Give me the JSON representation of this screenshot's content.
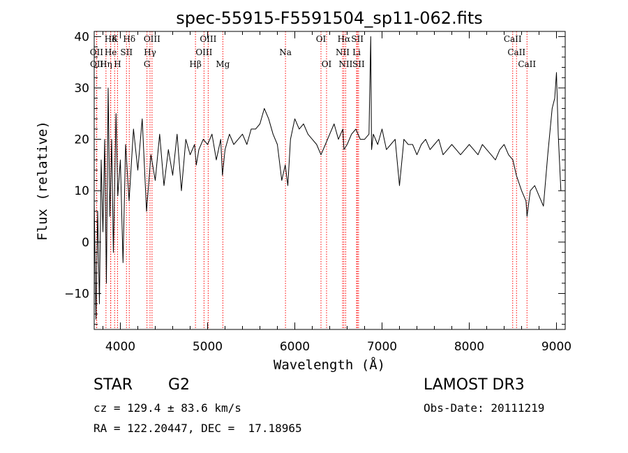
{
  "chart_data": {
    "type": "line",
    "title": "spec-55915-F5591504_sp11-062.fits",
    "xlabel": "Wavelength (Å)",
    "ylabel": "Flux (relative)",
    "xlim": [
      3700,
      9100
    ],
    "ylim": [
      -17,
      41
    ],
    "xticks": [
      4000,
      5000,
      6000,
      7000,
      8000,
      9000
    ],
    "yticks": [
      -10,
      0,
      10,
      20,
      30,
      40
    ],
    "grid": false,
    "line_color": "#ff0000",
    "spectrum": {
      "name": "flux",
      "x": [
        3700,
        3720,
        3740,
        3760,
        3780,
        3800,
        3820,
        3840,
        3860,
        3880,
        3900,
        3920,
        3950,
        3970,
        4000,
        4030,
        4060,
        4100,
        4150,
        4200,
        4250,
        4300,
        4350,
        4400,
        4450,
        4500,
        4550,
        4600,
        4650,
        4700,
        4750,
        4800,
        4850,
        4870,
        4900,
        4950,
        5000,
        5050,
        5100,
        5150,
        5170,
        5200,
        5250,
        5300,
        5350,
        5400,
        5450,
        5500,
        5550,
        5600,
        5650,
        5700,
        5750,
        5800,
        5850,
        5890,
        5920,
        5950,
        6000,
        6050,
        6100,
        6150,
        6200,
        6250,
        6300,
        6350,
        6400,
        6450,
        6500,
        6550,
        6563,
        6600,
        6650,
        6700,
        6750,
        6800,
        6850,
        6870,
        6880,
        6900,
        6950,
        7000,
        7050,
        7100,
        7150,
        7200,
        7240,
        7250,
        7300,
        7350,
        7400,
        7450,
        7500,
        7550,
        7600,
        7650,
        7700,
        7750,
        7800,
        7850,
        7900,
        7950,
        8000,
        8050,
        8100,
        8150,
        8200,
        8250,
        8300,
        8350,
        8400,
        8450,
        8500,
        8540,
        8560,
        8600,
        8650,
        8662,
        8700,
        8750,
        8800,
        8850,
        8900,
        8950,
        8980,
        9000,
        9020,
        9050
      ],
      "y": [
        8,
        -15,
        6,
        -12,
        16,
        2,
        20,
        -8,
        30,
        5,
        20,
        -2,
        25,
        9,
        16,
        -4,
        19,
        8,
        22,
        14,
        24,
        6,
        17,
        12,
        21,
        11,
        18,
        13,
        21,
        10,
        20,
        17,
        19,
        15,
        18,
        20,
        19,
        21,
        16,
        20,
        13,
        18,
        21,
        19,
        20,
        21,
        19,
        22,
        22,
        23,
        26,
        24,
        21,
        19,
        12,
        15,
        11,
        20,
        24,
        22,
        23,
        21,
        20,
        19,
        17,
        19,
        21,
        23,
        20,
        22,
        18,
        19,
        21,
        22,
        20,
        20,
        21,
        40,
        18,
        21,
        19,
        22,
        18,
        19,
        20,
        11,
        18,
        20,
        19,
        19,
        17,
        19,
        20,
        18,
        19,
        20,
        17,
        18,
        19,
        18,
        17,
        18,
        19,
        18,
        17,
        19,
        18,
        17,
        16,
        18,
        19,
        17,
        16,
        13,
        12,
        10,
        8,
        5,
        10,
        11,
        9,
        7,
        17,
        26,
        28,
        33,
        21,
        10
      ]
    },
    "lines": [
      {
        "label": "Hδ",
        "x": 3889,
        "row": 0
      },
      {
        "label": "K",
        "x": 3934,
        "row": 0
      },
      {
        "label": "Hδ",
        "x": 4102,
        "row": 0
      },
      {
        "label": "OIII",
        "x": 4363,
        "row": 0
      },
      {
        "label": "OIII",
        "x": 5007,
        "row": 0
      },
      {
        "label": "OI",
        "x": 6300,
        "row": 0
      },
      {
        "label": "Hα",
        "x": 6563,
        "row": 0
      },
      {
        "label": "SII",
        "x": 6717,
        "row": 0
      },
      {
        "label": "CaII",
        "x": 8498,
        "row": 0
      },
      {
        "label": "OII",
        "x": 3727,
        "row": 1
      },
      {
        "label": "He",
        "x": 3889,
        "row": 1
      },
      {
        "label": "SII",
        "x": 4070,
        "row": 1
      },
      {
        "label": "Hγ",
        "x": 4340,
        "row": 1
      },
      {
        "label": "OIII",
        "x": 4959,
        "row": 1
      },
      {
        "label": "Na",
        "x": 5893,
        "row": 1
      },
      {
        "label": "NII",
        "x": 6548,
        "row": 1
      },
      {
        "label": "Li",
        "x": 6708,
        "row": 1
      },
      {
        "label": "CaII",
        "x": 8542,
        "row": 1
      },
      {
        "label": "OII",
        "x": 3729,
        "row": 2
      },
      {
        "label": "Hη",
        "x": 3835,
        "row": 2
      },
      {
        "label": "H",
        "x": 3968,
        "row": 2
      },
      {
        "label": "G",
        "x": 4305,
        "row": 2
      },
      {
        "label": "Hβ",
        "x": 4861,
        "row": 2
      },
      {
        "label": "Mg",
        "x": 5175,
        "row": 2
      },
      {
        "label": "OI",
        "x": 6364,
        "row": 2
      },
      {
        "label": "NII",
        "x": 6583,
        "row": 2
      },
      {
        "label": "SII",
        "x": 6731,
        "row": 2
      },
      {
        "label": "CaII",
        "x": 8662,
        "row": 2
      }
    ]
  },
  "info": {
    "class": "STAR",
    "subclass": "G2",
    "survey": "LAMOST DR3",
    "cz": "cz = 129.4 ± 83.6 km/s",
    "obs_date": "Obs-Date: 20111219",
    "coords": "RA = 122.20447, DEC =  17.18965"
  }
}
